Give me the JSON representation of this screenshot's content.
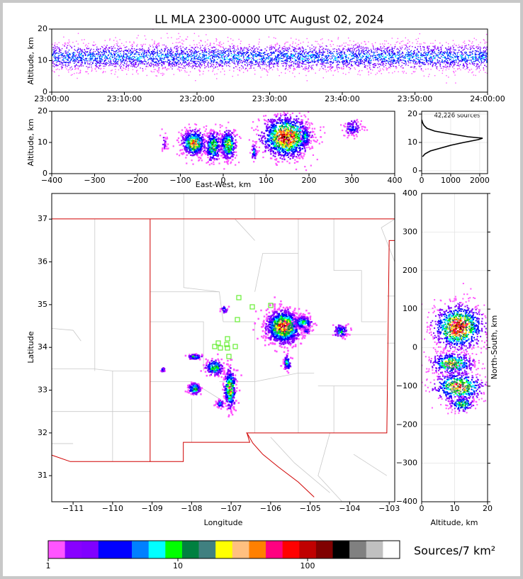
{
  "chart_data": [
    {
      "type": "heatmap",
      "title": "LL MLA 2300-0000 UTC August 02, 2024",
      "ylabel": "Altitude, km",
      "xlim": [
        0,
        60
      ],
      "xticks": [
        {
          "value": 0,
          "label": "23:00:00"
        },
        {
          "value": 10,
          "label": "23:10:00"
        },
        {
          "value": 20,
          "label": "23:20:00"
        },
        {
          "value": 30,
          "label": "23:30:00"
        },
        {
          "value": 40,
          "label": "23:40:00"
        },
        {
          "value": 50,
          "label": "23:50:00"
        },
        {
          "value": 60,
          "label": "24:00:00"
        }
      ],
      "ylim": [
        0,
        20
      ],
      "yticks": [
        0,
        10,
        20
      ]
    },
    {
      "type": "heatmap",
      "xlabel": "East-West, km",
      "ylabel": "Altitude, km",
      "xlim": [
        -400,
        400
      ],
      "xticks": [
        {
          "value": -400,
          "label": "−400"
        },
        {
          "value": -300,
          "label": "−300"
        },
        {
          "value": -200,
          "label": "−200"
        },
        {
          "value": -100,
          "label": "−100"
        },
        0,
        100,
        200,
        300,
        400
      ],
      "ylim": [
        0,
        20
      ],
      "yticks": [
        0,
        10,
        20
      ]
    },
    {
      "type": "line",
      "annotation": "42,226 sources",
      "color": "#000000",
      "grid": true,
      "y": [
        5,
        6,
        7,
        8,
        9,
        10,
        11,
        11.5,
        12,
        13,
        14,
        15,
        16,
        17,
        18
      ],
      "values": [
        30,
        120,
        300,
        650,
        1000,
        1450,
        1950,
        2100,
        1600,
        1000,
        450,
        180,
        80,
        30,
        5
      ],
      "xlim": [
        0,
        2270
      ],
      "xticks": [
        0,
        1000,
        2000
      ],
      "ylim": [
        -1,
        21
      ],
      "yticks": [
        0,
        10,
        20
      ]
    },
    {
      "type": "map",
      "xlabel": "Longitude",
      "ylabel": "Latitude",
      "xlim": [
        -111.54,
        -102.86
      ],
      "xticks": [
        {
          "value": -111,
          "label": "−111"
        },
        {
          "value": -110,
          "label": "−110"
        },
        {
          "value": -109,
          "label": "−109"
        },
        {
          "value": -108,
          "label": "−108"
        },
        {
          "value": -107,
          "label": "−107"
        },
        {
          "value": -106,
          "label": "−106"
        },
        {
          "value": -105,
          "label": "−105"
        },
        {
          "value": -104,
          "label": "−104"
        },
        {
          "value": -103,
          "label": "−103"
        }
      ],
      "ylim": [
        30.39,
        37.6
      ],
      "yticks": [
        31,
        32,
        33,
        34,
        35,
        36,
        37
      ]
    },
    {
      "type": "heatmap",
      "xlabel": "Altitude, km",
      "ylabel": "North-South, km",
      "grid": true,
      "xlim": [
        0,
        20
      ],
      "xticks": [
        0,
        10,
        20
      ],
      "ylim": [
        -400,
        400
      ],
      "yticks": [
        {
          "value": -400,
          "label": "−400"
        },
        {
          "value": -300,
          "label": "−300"
        },
        {
          "value": -200,
          "label": "−200"
        },
        {
          "value": -100,
          "label": "−100"
        },
        0,
        100,
        200,
        300,
        400
      ]
    },
    {
      "type": "colorbar",
      "label": "Sources/7 km²",
      "log": true,
      "clim": [
        1,
        513
      ],
      "ticks": [
        1,
        10,
        100
      ],
      "colors": [
        "#ff55ff",
        "#8800ff",
        "#8000ff",
        "#0000ff",
        "#0000ff",
        "#0080ff",
        "#00ffff",
        "#00ff00",
        "#008040",
        "#408080",
        "#ffff00",
        "#ffc080",
        "#ff8000",
        "#ff0080",
        "#ff0000",
        "#c00000",
        "#800000",
        "#000000",
        "#808080",
        "#c0c0c0",
        "#ffffff"
      ]
    }
  ]
}
